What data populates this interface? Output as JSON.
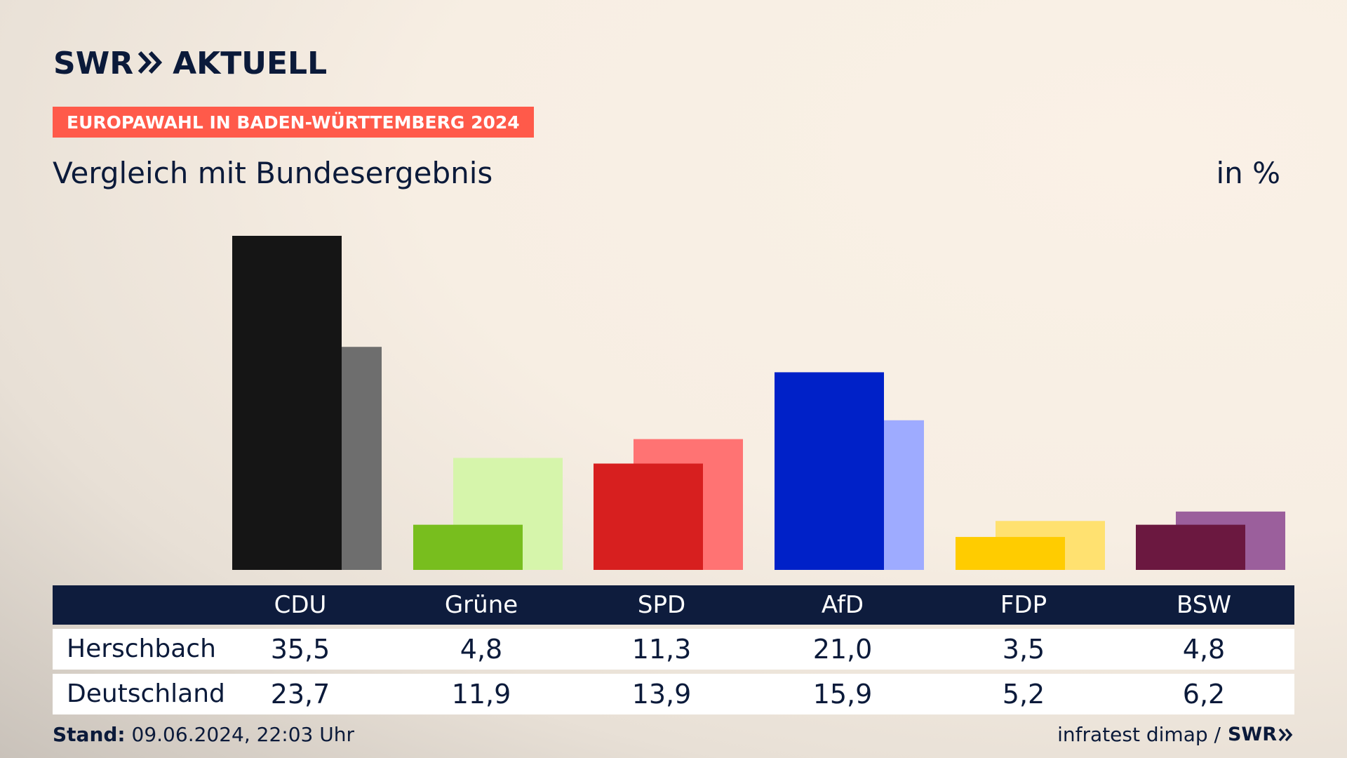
{
  "header": {
    "logo_left": "SWR",
    "logo_right": "AKTUELL",
    "tag": "EUROPAWAHL IN BADEN-WÜRTTEMBERG 2024",
    "subtitle": "Vergleich mit Bundesergebnis",
    "unit": "in %"
  },
  "colors": {
    "tag_bg": "#ff5a4a",
    "navy": "#0e1c3d"
  },
  "chart_data": {
    "type": "bar",
    "categories": [
      "CDU",
      "Grüne",
      "SPD",
      "AfD",
      "FDP",
      "BSW"
    ],
    "series": [
      {
        "name": "Herschbach",
        "values": [
          35.5,
          4.8,
          11.3,
          21.0,
          3.5,
          4.8
        ],
        "colors": [
          "#151515",
          "#78be1e",
          "#d71f1f",
          "#0021c8",
          "#ffcc00",
          "#6b1840"
        ]
      },
      {
        "name": "Deutschland",
        "values": [
          23.7,
          11.9,
          13.9,
          15.9,
          5.2,
          6.2
        ],
        "colors": [
          "#6e6e6e",
          "#d6f5ab",
          "#ff7373",
          "#9eabff",
          "#ffe170",
          "#9b5f9c"
        ]
      }
    ],
    "ylim": [
      0,
      36
    ],
    "display_values": {
      "Herschbach": [
        "35,5",
        "4,8",
        "11,3",
        "21,0",
        "3,5",
        "4,8"
      ],
      "Deutschland": [
        "23,7",
        "11,9",
        "13,9",
        "15,9",
        "5,2",
        "6,2"
      ]
    }
  },
  "footer": {
    "stand_label": "Stand:",
    "stand_value": "09.06.2024, 22:03 Uhr",
    "source": "infratest dimap /",
    "source_logo": "SWR"
  }
}
